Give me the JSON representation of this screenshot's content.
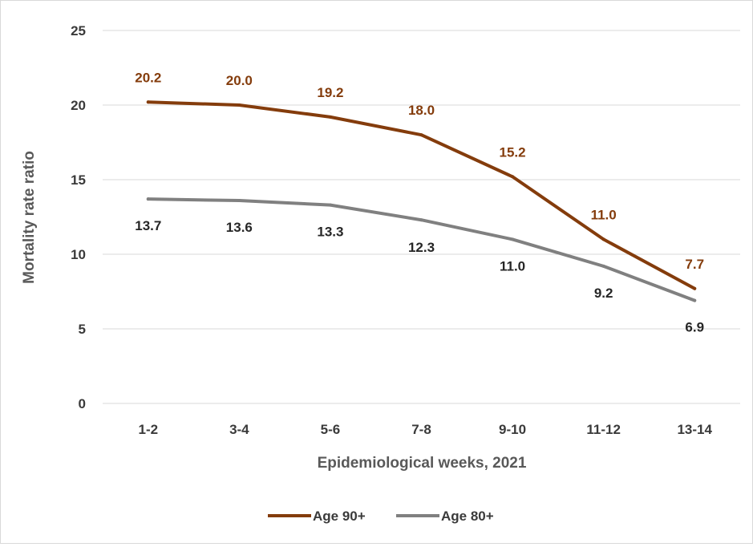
{
  "chart_data": {
    "type": "line",
    "categories": [
      "1-2",
      "3-4",
      "5-6",
      "7-8",
      "9-10",
      "11-12",
      "13-14"
    ],
    "series": [
      {
        "name": "Age 90+",
        "color": "#843c0c",
        "values": [
          20.2,
          20.0,
          19.2,
          18.0,
          15.2,
          11.0,
          7.7
        ],
        "labels": [
          "20.2",
          "20.0",
          "19.2",
          "18.0",
          "15.2",
          "11.0",
          "7.7"
        ]
      },
      {
        "name": "Age 80+",
        "color": "#808080",
        "values": [
          13.7,
          13.6,
          13.3,
          12.3,
          11.0,
          9.2,
          6.9
        ],
        "labels": [
          "13.7",
          "13.6",
          "13.3",
          "12.3",
          "11.0",
          "9.2",
          "6.9"
        ]
      }
    ],
    "xlabel": "Epidemiological weeks, 2021",
    "ylabel": "Mortality rate ratio",
    "ylim": [
      0,
      25
    ],
    "yticks": [
      "0",
      "5",
      "10",
      "15",
      "20",
      "25"
    ],
    "grid": true,
    "legend": "bottom",
    "label_color_dark": "#262626",
    "gridline_color": "#d9d9d9"
  }
}
